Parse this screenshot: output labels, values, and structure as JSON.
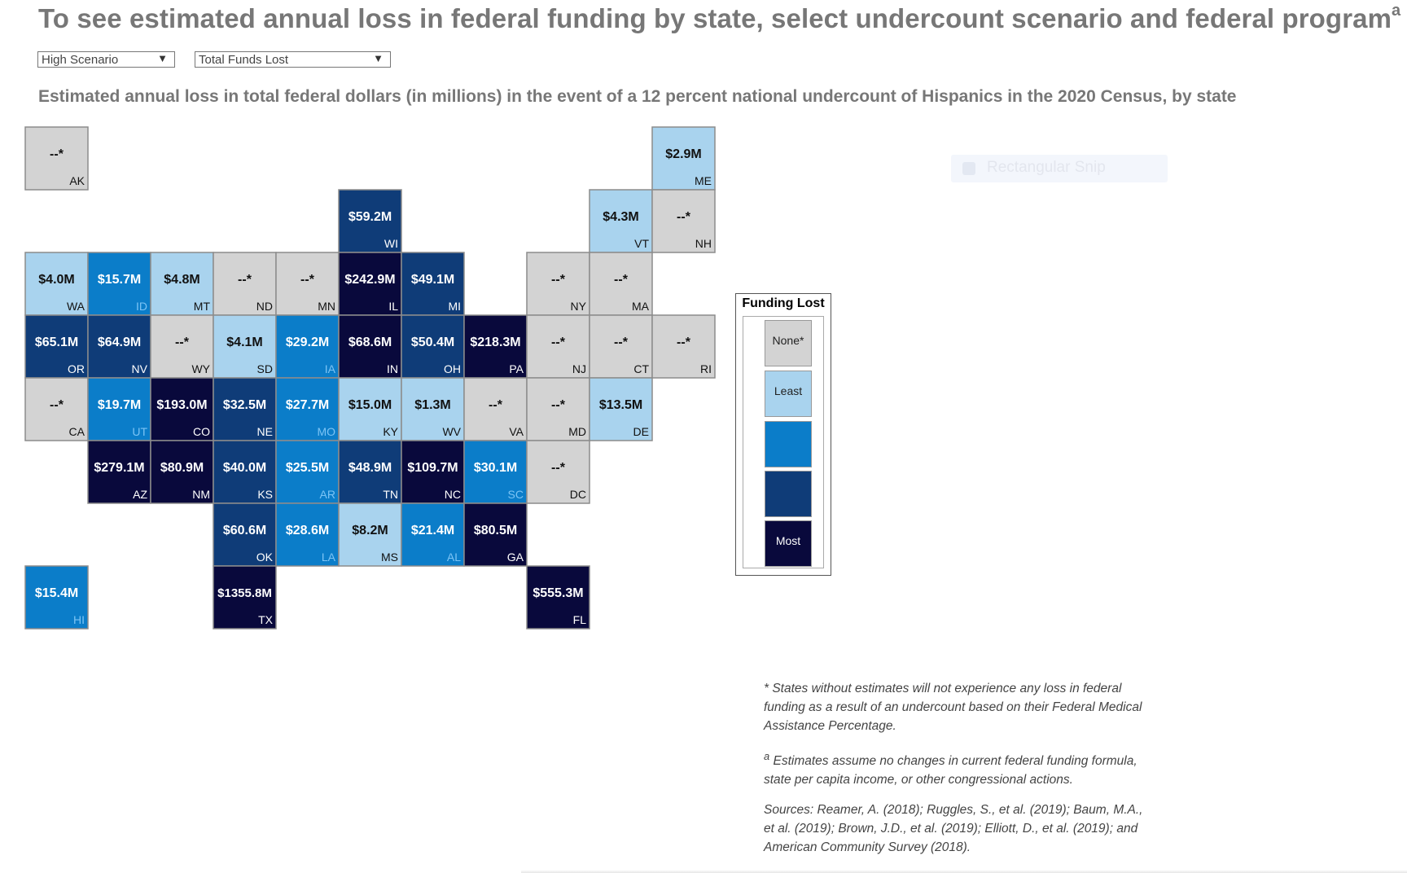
{
  "title": "To see estimated annual loss in federal funding by state, select undercount scenario and federal program",
  "title_superscript": "a",
  "controls": {
    "scenario_value": "High Scenario",
    "program_value": "Total Funds Lost"
  },
  "subtitle": "Estimated annual loss in total federal dollars (in millions) in the event of a 12 percent national undercount of Hispanics in the 2020 Census, by state",
  "colors": {
    "none": "#d3d3d3",
    "least": "#a9d3ee",
    "mid": "#0b7dc9",
    "high": "#0f3c78",
    "most": "#09093c"
  },
  "legend": {
    "title": "Funding Lost",
    "items": [
      {
        "label": "None*",
        "level": "none"
      },
      {
        "label": "Least",
        "level": "least"
      },
      {
        "label": "",
        "level": "mid"
      },
      {
        "label": "",
        "level": "high"
      },
      {
        "label": "Most",
        "level": "most"
      }
    ]
  },
  "chart_data": {
    "type": "tile-map",
    "unit": "millions of dollars",
    "states": [
      {
        "abbr": "AK",
        "label": "--*",
        "value_millions": null,
        "level": "none",
        "col": 0,
        "row": 0
      },
      {
        "abbr": "ME",
        "label": "$2.9M",
        "value_millions": 2.9,
        "level": "least",
        "col": 10,
        "row": 0
      },
      {
        "abbr": "WI",
        "label": "$59.2M",
        "value_millions": 59.2,
        "level": "high",
        "col": 5,
        "row": 1
      },
      {
        "abbr": "VT",
        "label": "$4.3M",
        "value_millions": 4.3,
        "level": "least",
        "col": 9,
        "row": 1
      },
      {
        "abbr": "NH",
        "label": "--*",
        "value_millions": null,
        "level": "none",
        "col": 10,
        "row": 1
      },
      {
        "abbr": "WA",
        "label": "$4.0M",
        "value_millions": 4.0,
        "level": "least",
        "col": 0,
        "row": 2
      },
      {
        "abbr": "ID",
        "label": "$15.7M",
        "value_millions": 15.7,
        "level": "mid",
        "col": 1,
        "row": 2
      },
      {
        "abbr": "MT",
        "label": "$4.8M",
        "value_millions": 4.8,
        "level": "least",
        "col": 2,
        "row": 2
      },
      {
        "abbr": "ND",
        "label": "--*",
        "value_millions": null,
        "level": "none",
        "col": 3,
        "row": 2
      },
      {
        "abbr": "MN",
        "label": "--*",
        "value_millions": null,
        "level": "none",
        "col": 4,
        "row": 2
      },
      {
        "abbr": "IL",
        "label": "$242.9M",
        "value_millions": 242.9,
        "level": "most",
        "col": 5,
        "row": 2
      },
      {
        "abbr": "MI",
        "label": "$49.1M",
        "value_millions": 49.1,
        "level": "high",
        "col": 6,
        "row": 2
      },
      {
        "abbr": "NY",
        "label": "--*",
        "value_millions": null,
        "level": "none",
        "col": 8,
        "row": 2
      },
      {
        "abbr": "MA",
        "label": "--*",
        "value_millions": null,
        "level": "none",
        "col": 9,
        "row": 2
      },
      {
        "abbr": "OR",
        "label": "$65.1M",
        "value_millions": 65.1,
        "level": "high",
        "col": 0,
        "row": 3
      },
      {
        "abbr": "NV",
        "label": "$64.9M",
        "value_millions": 64.9,
        "level": "high",
        "col": 1,
        "row": 3
      },
      {
        "abbr": "WY",
        "label": "--*",
        "value_millions": null,
        "level": "none",
        "col": 2,
        "row": 3
      },
      {
        "abbr": "SD",
        "label": "$4.1M",
        "value_millions": 4.1,
        "level": "least",
        "col": 3,
        "row": 3
      },
      {
        "abbr": "IA",
        "label": "$29.2M",
        "value_millions": 29.2,
        "level": "mid",
        "col": 4,
        "row": 3
      },
      {
        "abbr": "IN",
        "label": "$68.6M",
        "value_millions": 68.6,
        "level": "most",
        "col": 5,
        "row": 3
      },
      {
        "abbr": "OH",
        "label": "$50.4M",
        "value_millions": 50.4,
        "level": "high",
        "col": 6,
        "row": 3
      },
      {
        "abbr": "PA",
        "label": "$218.3M",
        "value_millions": 218.3,
        "level": "most",
        "col": 7,
        "row": 3
      },
      {
        "abbr": "NJ",
        "label": "--*",
        "value_millions": null,
        "level": "none",
        "col": 8,
        "row": 3
      },
      {
        "abbr": "CT",
        "label": "--*",
        "value_millions": null,
        "level": "none",
        "col": 9,
        "row": 3
      },
      {
        "abbr": "RI",
        "label": "--*",
        "value_millions": null,
        "level": "none",
        "col": 10,
        "row": 3
      },
      {
        "abbr": "CA",
        "label": "--*",
        "value_millions": null,
        "level": "none",
        "col": 0,
        "row": 4
      },
      {
        "abbr": "UT",
        "label": "$19.7M",
        "value_millions": 19.7,
        "level": "mid",
        "col": 1,
        "row": 4
      },
      {
        "abbr": "CO",
        "label": "$193.0M",
        "value_millions": 193.0,
        "level": "most",
        "col": 2,
        "row": 4
      },
      {
        "abbr": "NE",
        "label": "$32.5M",
        "value_millions": 32.5,
        "level": "high",
        "col": 3,
        "row": 4
      },
      {
        "abbr": "MO",
        "label": "$27.7M",
        "value_millions": 27.7,
        "level": "mid",
        "col": 4,
        "row": 4
      },
      {
        "abbr": "KY",
        "label": "$15.0M",
        "value_millions": 15.0,
        "level": "least",
        "col": 5,
        "row": 4
      },
      {
        "abbr": "WV",
        "label": "$1.3M",
        "value_millions": 1.3,
        "level": "least",
        "col": 6,
        "row": 4
      },
      {
        "abbr": "VA",
        "label": "--*",
        "value_millions": null,
        "level": "none",
        "col": 7,
        "row": 4
      },
      {
        "abbr": "MD",
        "label": "--*",
        "value_millions": null,
        "level": "none",
        "col": 8,
        "row": 4
      },
      {
        "abbr": "DE",
        "label": "$13.5M",
        "value_millions": 13.5,
        "level": "least",
        "col": 9,
        "row": 4
      },
      {
        "abbr": "AZ",
        "label": "$279.1M",
        "value_millions": 279.1,
        "level": "most",
        "col": 1,
        "row": 5
      },
      {
        "abbr": "NM",
        "label": "$80.9M",
        "value_millions": 80.9,
        "level": "most",
        "col": 2,
        "row": 5
      },
      {
        "abbr": "KS",
        "label": "$40.0M",
        "value_millions": 40.0,
        "level": "high",
        "col": 3,
        "row": 5
      },
      {
        "abbr": "AR",
        "label": "$25.5M",
        "value_millions": 25.5,
        "level": "mid",
        "col": 4,
        "row": 5
      },
      {
        "abbr": "TN",
        "label": "$48.9M",
        "value_millions": 48.9,
        "level": "high",
        "col": 5,
        "row": 5
      },
      {
        "abbr": "NC",
        "label": "$109.7M",
        "value_millions": 109.7,
        "level": "most",
        "col": 6,
        "row": 5
      },
      {
        "abbr": "SC",
        "label": "$30.1M",
        "value_millions": 30.1,
        "level": "mid",
        "col": 7,
        "row": 5
      },
      {
        "abbr": "DC",
        "label": "--*",
        "value_millions": null,
        "level": "none",
        "col": 8,
        "row": 5
      },
      {
        "abbr": "OK",
        "label": "$60.6M",
        "value_millions": 60.6,
        "level": "high",
        "col": 3,
        "row": 6
      },
      {
        "abbr": "LA",
        "label": "$28.6M",
        "value_millions": 28.6,
        "level": "mid",
        "col": 4,
        "row": 6
      },
      {
        "abbr": "MS",
        "label": "$8.2M",
        "value_millions": 8.2,
        "level": "least",
        "col": 5,
        "row": 6
      },
      {
        "abbr": "AL",
        "label": "$21.4M",
        "value_millions": 21.4,
        "level": "mid",
        "col": 6,
        "row": 6
      },
      {
        "abbr": "GA",
        "label": "$80.5M",
        "value_millions": 80.5,
        "level": "most",
        "col": 7,
        "row": 6
      },
      {
        "abbr": "HI",
        "label": "$15.4M",
        "value_millions": 15.4,
        "level": "mid",
        "col": 0,
        "row": 7
      },
      {
        "abbr": "TX",
        "label": "$1355.8M",
        "value_millions": 1355.8,
        "level": "most",
        "col": 3,
        "row": 7
      },
      {
        "abbr": "FL",
        "label": "$555.3M",
        "value_millions": 555.3,
        "level": "most",
        "col": 8,
        "row": 7
      }
    ]
  },
  "footnotes": {
    "note1": "*  States without estimates will not experience any loss in federal funding as a result of an undercount based on their Federal Medical Assistance Percentage.",
    "note2_marker": "a",
    "note2": " Estimates assume no changes in current federal funding formula, state per capita income, or other congressional actions.",
    "sources": "Sources: Reamer, A. (2018); Ruggles, S., et al. (2019); Baum, M.A., et al. (2019); Brown, J.D., et al. (2019); Elliott, D., et al. (2019); and American Community Survey (2018)."
  },
  "overlay": {
    "snip_label": "Rectangular Snip"
  }
}
